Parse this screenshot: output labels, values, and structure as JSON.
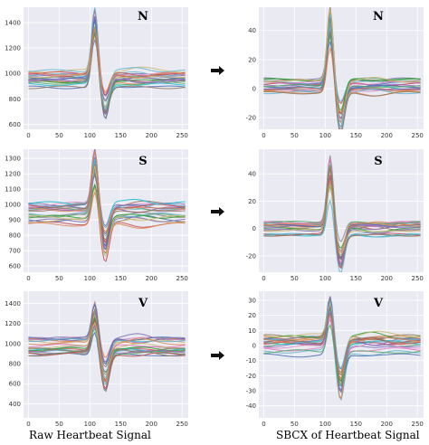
{
  "chart_data": [
    {
      "id": "raw-n",
      "type": "line",
      "label": "N",
      "x_ticks": [
        0,
        50,
        100,
        150,
        200,
        250
      ],
      "y_ticks": [
        600,
        800,
        1000,
        1200,
        1400
      ],
      "xlim": [
        -8,
        260
      ],
      "ylim": [
        560,
        1520
      ],
      "grid": true,
      "beat": {
        "base": 960,
        "peak": 520,
        "dip": -300,
        "spread": 70
      }
    },
    {
      "id": "sbcx-n",
      "type": "line",
      "label": "N",
      "x_ticks": [
        0,
        50,
        100,
        150,
        200,
        250
      ],
      "y_ticks": [
        -20,
        0,
        20,
        40
      ],
      "xlim": [
        -8,
        260
      ],
      "ylim": [
        -28,
        56
      ],
      "grid": true,
      "beat": {
        "base": 2,
        "peak": 50,
        "dip": -27,
        "spread": 5
      }
    },
    {
      "id": "raw-s",
      "type": "line",
      "label": "S",
      "x_ticks": [
        0,
        50,
        100,
        150,
        200,
        250
      ],
      "y_ticks": [
        600,
        700,
        800,
        900,
        1000,
        1100,
        1200,
        1300
      ],
      "xlim": [
        -8,
        260
      ],
      "ylim": [
        560,
        1360
      ],
      "grid": true,
      "beat": {
        "base": 940,
        "peak": 380,
        "dip": -260,
        "spread": 70
      }
    },
    {
      "id": "sbcx-s",
      "type": "line",
      "label": "S",
      "x_ticks": [
        0,
        50,
        100,
        150,
        200,
        250
      ],
      "y_ticks": [
        -20,
        0,
        20,
        40
      ],
      "xlim": [
        -8,
        260
      ],
      "ylim": [
        -32,
        58
      ],
      "grid": true,
      "beat": {
        "base": 0,
        "peak": 48,
        "dip": -28,
        "spread": 5
      }
    },
    {
      "id": "raw-v",
      "type": "line",
      "label": "V",
      "x_ticks": [
        0,
        50,
        100,
        150,
        200,
        250
      ],
      "y_ticks": [
        400,
        600,
        800,
        1000,
        1200,
        1400
      ],
      "xlim": [
        -8,
        260
      ],
      "ylim": [
        260,
        1520
      ],
      "grid": true,
      "beat": {
        "base": 980,
        "peak": 380,
        "dip": -360,
        "spread": 95
      }
    },
    {
      "id": "sbcx-v",
      "type": "line",
      "label": "V",
      "x_ticks": [
        0,
        50,
        100,
        150,
        200,
        250
      ],
      "y_ticks": [
        -40,
        -30,
        -20,
        -10,
        0,
        10,
        20,
        30
      ],
      "xlim": [
        -8,
        260
      ],
      "ylim": [
        -48,
        36
      ],
      "grid": true,
      "beat": {
        "base": 0,
        "peak": 28,
        "dip": -38,
        "spread": 7
      }
    }
  ],
  "captions": {
    "left": "Raw Heartbeat Signal",
    "right": "SBCX of  Heartbeat Signal"
  },
  "arrow_icon": "right-arrow-icon",
  "palette": [
    "#4c72b0",
    "#55a868",
    "#c44e52",
    "#8172b2",
    "#ccb974",
    "#64b5cd",
    "#dd8452",
    "#937860",
    "#da8bc3",
    "#8c8c8c",
    "#e377c2",
    "#17becf",
    "#2ca02c",
    "#9467bd"
  ]
}
